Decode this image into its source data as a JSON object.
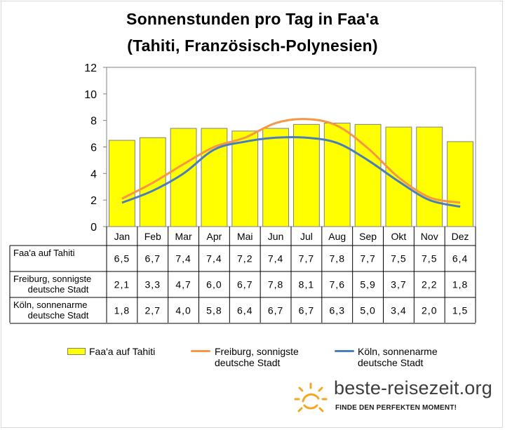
{
  "title_line1": "Sonnenstunden pro Tag in Faa'a",
  "title_line2": "(Tahiti, Französisch-Polynesien)",
  "chart_data": {
    "type": "bar",
    "title": "Sonnenstunden pro Tag in Faa'a (Tahiti, Französisch-Polynesien)",
    "categories": [
      "Jan",
      "Feb",
      "Mar",
      "Apr",
      "Mai",
      "Jun",
      "Jul",
      "Aug",
      "Sep",
      "Okt",
      "Nov",
      "Dez"
    ],
    "ylim": [
      0,
      12
    ],
    "yticks": [
      0,
      2,
      4,
      6,
      8,
      10,
      12
    ],
    "grid": false,
    "legend_position": "bottom",
    "series": [
      {
        "name": "Faa'a auf Tahiti",
        "label_line1": "Faa'a auf Tahiti",
        "label_line2": "",
        "type": "bar",
        "color": "#ffff00",
        "values": [
          6.5,
          6.7,
          7.4,
          7.4,
          7.2,
          7.4,
          7.7,
          7.8,
          7.7,
          7.5,
          7.5,
          6.4
        ],
        "display": [
          "6,5",
          "6,7",
          "7,4",
          "7,4",
          "7,2",
          "7,4",
          "7,7",
          "7,8",
          "7,7",
          "7,5",
          "7,5",
          "6,4"
        ]
      },
      {
        "name": "Freiburg, sonnigste deutsche Stadt",
        "label_line1": "Freiburg, sonnigste",
        "label_line2": "deutsche Stadt",
        "type": "line",
        "color": "#f79646",
        "values": [
          2.1,
          3.3,
          4.7,
          6.0,
          6.7,
          7.8,
          8.1,
          7.6,
          5.9,
          3.7,
          2.2,
          1.8
        ],
        "display": [
          "2,1",
          "3,3",
          "4,7",
          "6,0",
          "6,7",
          "7,8",
          "8,1",
          "7,6",
          "5,9",
          "3,7",
          "2,2",
          "1,8"
        ]
      },
      {
        "name": "Köln, sonnenarme deutsche Stadt",
        "label_line1": "Köln, sonnenarme",
        "label_line2": "deutsche Stadt",
        "type": "line",
        "color": "#4a7ebb",
        "values": [
          1.8,
          2.7,
          4.0,
          5.8,
          6.4,
          6.7,
          6.7,
          6.3,
          5.0,
          3.4,
          2.0,
          1.5
        ],
        "display": [
          "1,8",
          "2,7",
          "4,0",
          "5,8",
          "6,4",
          "6,7",
          "6,7",
          "6,3",
          "5,0",
          "3,4",
          "2,0",
          "1,5"
        ]
      }
    ]
  },
  "logo": {
    "text": "beste-reisezeit.org",
    "tagline": "FINDE DEN PERFEKTEN MOMENT!",
    "color": "#f5a623",
    "icon": "sun-icon"
  }
}
